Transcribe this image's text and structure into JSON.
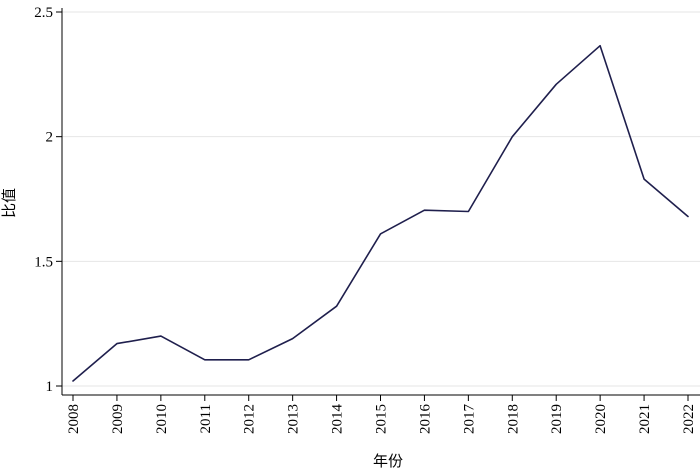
{
  "chart_data": {
    "type": "line",
    "xlabel": "年份",
    "ylabel": "比值",
    "x": [
      "2008",
      "2009",
      "2010",
      "2011",
      "2012",
      "2013",
      "2014",
      "2015",
      "2016",
      "2017",
      "2018",
      "2019",
      "2020",
      "2021",
      "2022"
    ],
    "series": [
      {
        "values": [
          1.02,
          1.17,
          1.2,
          1.105,
          1.105,
          1.19,
          1.32,
          1.61,
          1.705,
          1.7,
          2.0,
          2.21,
          2.365,
          1.83,
          1.68
        ],
        "color": "#1f1f4d"
      }
    ],
    "ylim": [
      1,
      2.5
    ],
    "yticks": [
      1,
      1.5,
      2,
      2.5
    ],
    "ytick_labels": [
      "1",
      "1.5",
      "2",
      "2.5"
    ],
    "grid": true
  }
}
